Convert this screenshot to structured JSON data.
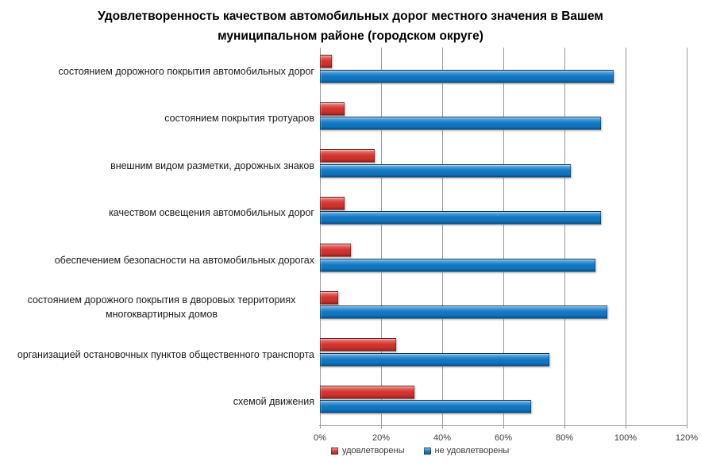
{
  "title": "Удовлетворенность качеством автомобильных дорог местного значения в Вашем муниципальном районе (городском округе)",
  "x_axis": {
    "tick_labels": [
      "0%",
      "20%",
      "40%",
      "60%",
      "80%",
      "100%",
      "120%"
    ],
    "min": 0,
    "max": 120
  },
  "legend": {
    "items": [
      {
        "label": "удовлетворены",
        "color": "#d5342e"
      },
      {
        "label": "не удовлетворены",
        "color": "#1179c6"
      }
    ]
  },
  "colors": {
    "satisfied_bar": "#d5342e",
    "unsatisfied_bar": "#1179c6",
    "gridline": "#9a9a9a",
    "axis_text": "#3a3a3a",
    "title_text": "#000000"
  },
  "chart_data": {
    "type": "bar",
    "orientation": "horizontal",
    "title": "Удовлетворенность качеством автомобильных дорог местного значения в Вашем муниципальном районе (городском округе)",
    "categories": [
      "состоянием дорожного покрытия автомобильных дорог",
      "состоянием покрытия тротуаров",
      "внешним видом разметки, дорожных знаков",
      "качеством освещения автомобильных дорог",
      "обеспечением безопасности на автомобильных дорогах",
      "состоянием дорожного покрытия в дворовых территориях многоквартирных домов",
      "организацией остановочных пунктов общественного транспорта",
      "схемой движения"
    ],
    "series": [
      {
        "name": "удовлетворены",
        "color": "#d5342e",
        "values": [
          4,
          8,
          18,
          8,
          10,
          6,
          25,
          31
        ]
      },
      {
        "name": "не удовлетворены",
        "color": "#1179c6",
        "values": [
          96,
          92,
          82,
          92,
          90,
          94,
          75,
          69
        ]
      }
    ],
    "xlim": [
      0,
      120
    ],
    "x_tick_step": 20,
    "unit": "%",
    "grid": "vertical",
    "legend_position": "bottom"
  }
}
